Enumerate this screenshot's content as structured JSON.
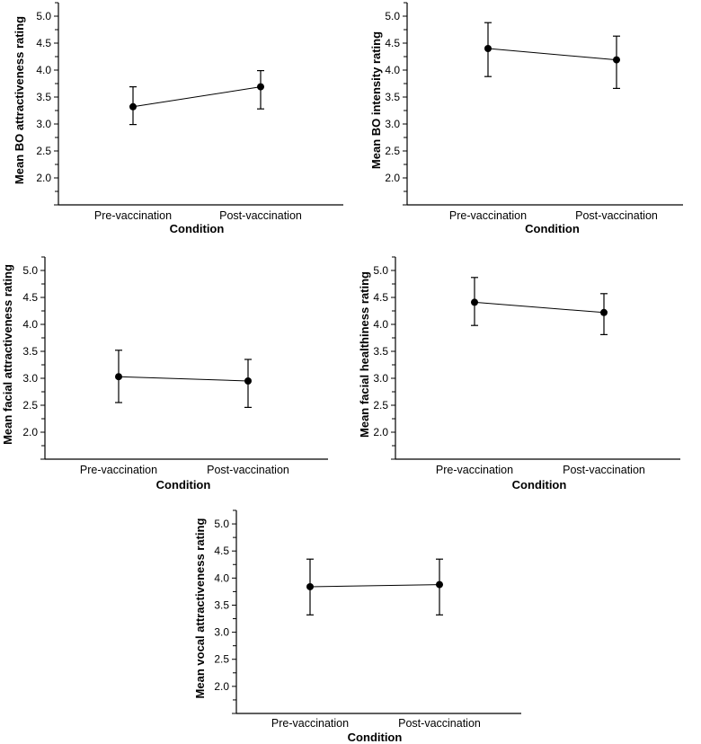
{
  "chart_data": [
    {
      "type": "line",
      "title": "",
      "categories": [
        "Pre-vaccination",
        "Post-vaccination"
      ],
      "values": [
        3.32,
        3.69
      ],
      "error_low": [
        2.99,
        3.28
      ],
      "error_high": [
        3.69,
        3.99
      ],
      "xlabel": "Condition",
      "ylabel": "Mean BO attractiveness  rating",
      "yticks": [
        "5.0",
        "4.5",
        "4.0",
        "3.5",
        "3.0",
        "2.5",
        "2.0"
      ],
      "ylim": [
        1.5,
        5.25
      ]
    },
    {
      "type": "line",
      "title": "",
      "categories": [
        "Pre-vaccination",
        "Post-vaccination"
      ],
      "values": [
        4.4,
        4.19
      ],
      "error_low": [
        3.88,
        3.66
      ],
      "error_high": [
        4.88,
        4.63
      ],
      "xlabel": "Condition",
      "ylabel": "Mean BO intensity rating",
      "yticks": [
        "5.0",
        "4.5",
        "4.0",
        "3.5",
        "3.0",
        "2.5",
        "2.0"
      ],
      "ylim": [
        1.5,
        5.25
      ]
    },
    {
      "type": "line",
      "title": "",
      "categories": [
        "Pre-vaccination",
        "Post-vaccination"
      ],
      "values": [
        3.03,
        2.95
      ],
      "error_low": [
        2.55,
        2.46
      ],
      "error_high": [
        3.52,
        3.35
      ],
      "xlabel": "Condition",
      "ylabel": "Mean facial attractiveness rating",
      "yticks": [
        "5.0",
        "4.5",
        "4.0",
        "3.5",
        "3.0",
        "2.5",
        "2.0"
      ],
      "ylim": [
        1.5,
        5.25
      ]
    },
    {
      "type": "line",
      "title": "",
      "categories": [
        "Pre-vaccination",
        "Post-vaccination"
      ],
      "values": [
        4.41,
        4.22
      ],
      "error_low": [
        3.98,
        3.81
      ],
      "error_high": [
        4.87,
        4.57
      ],
      "xlabel": "Condition",
      "ylabel": "Mean facial healthiness rating",
      "yticks": [
        "5.0",
        "4.5",
        "4.0",
        "3.5",
        "3.0",
        "2.5",
        "2.0"
      ],
      "ylim": [
        1.5,
        5.25
      ]
    },
    {
      "type": "line",
      "title": "",
      "categories": [
        "Pre-vaccination",
        "Post-vaccination"
      ],
      "values": [
        3.84,
        3.88
      ],
      "error_low": [
        3.32,
        3.32
      ],
      "error_high": [
        4.35,
        4.35
      ],
      "xlabel": "Condition",
      "ylabel": "Mean vocal attractiveness rating",
      "yticks": [
        "5.0",
        "4.5",
        "4.0",
        "3.5",
        "3.0",
        "2.5",
        "2.0"
      ],
      "ylim": [
        1.5,
        5.25
      ]
    }
  ]
}
